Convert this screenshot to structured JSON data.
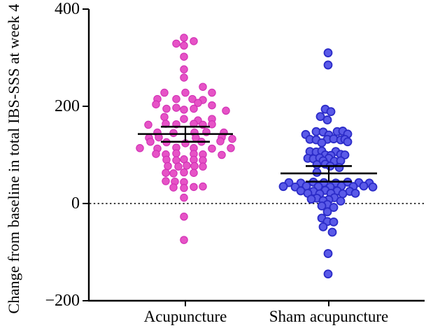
{
  "figure": {
    "background": "#ffffff",
    "y_axis_title": "Change from baseline in total IBS-SSS at week 4",
    "y_tick_labels": [
      "400",
      "200",
      "0",
      "−200"
    ],
    "x_category_labels": [
      "Acupuncture",
      "Sham acupuncture"
    ]
  },
  "chart_data": {
    "type": "scatter",
    "subtype": "beeswarm dot plot with mean and SEM error bars",
    "title": "",
    "xlabel": "",
    "ylabel": "Change from baseline in total IBS-SSS at week 4",
    "ylim": [
      -200,
      400
    ],
    "yticks": [
      400,
      200,
      0,
      -200
    ],
    "zero_reference_line": 0,
    "grid": false,
    "legend": false,
    "categories": [
      "Acupuncture",
      "Sham acupuncture"
    ],
    "series": [
      {
        "name": "Acupuncture",
        "color": "#E653C6",
        "edge_color": "#D12FB4",
        "mean": 143,
        "error_upper": 158,
        "error_lower": 127,
        "points": [
          [
            -2,
            341
          ],
          [
            12,
            334
          ],
          [
            -13,
            329
          ],
          [
            -2,
            325
          ],
          [
            -2,
            302
          ],
          [
            -2,
            276
          ],
          [
            -2,
            259
          ],
          [
            25,
            240
          ],
          [
            -30,
            228
          ],
          [
            0,
            228
          ],
          [
            38,
            228
          ],
          [
            -40,
            215
          ],
          [
            -13,
            215
          ],
          [
            10,
            215
          ],
          [
            25,
            213
          ],
          [
            -42,
            204
          ],
          [
            18,
            207
          ],
          [
            38,
            202
          ],
          [
            -27,
            195
          ],
          [
            -13,
            197
          ],
          [
            -2,
            193
          ],
          [
            12,
            195
          ],
          [
            58,
            191
          ],
          [
            -30,
            178
          ],
          [
            -2,
            174
          ],
          [
            18,
            171
          ],
          [
            38,
            174
          ],
          [
            -53,
            162
          ],
          [
            -28,
            164
          ],
          [
            -13,
            163
          ],
          [
            12,
            164
          ],
          [
            25,
            162
          ],
          [
            38,
            163
          ],
          [
            -40,
            146
          ],
          [
            -17,
            145
          ],
          [
            13,
            146
          ],
          [
            30,
            147
          ],
          [
            55,
            146
          ],
          [
            -52,
            135
          ],
          [
            -38,
            136
          ],
          [
            15,
            135
          ],
          [
            52,
            136
          ],
          [
            67,
            133
          ],
          [
            -50,
            127
          ],
          [
            -27,
            126
          ],
          [
            0,
            124
          ],
          [
            23,
            127
          ],
          [
            50,
            128
          ],
          [
            -65,
            114
          ],
          [
            -40,
            113
          ],
          [
            -13,
            115
          ],
          [
            12,
            114
          ],
          [
            38,
            113
          ],
          [
            65,
            114
          ],
          [
            -42,
            102
          ],
          [
            -28,
            101
          ],
          [
            -13,
            103
          ],
          [
            12,
            102
          ],
          [
            25,
            101
          ],
          [
            52,
            100
          ],
          [
            -27,
            90
          ],
          [
            -13,
            89
          ],
          [
            -2,
            91
          ],
          [
            12,
            90
          ],
          [
            25,
            89
          ],
          [
            -25,
            77
          ],
          [
            -10,
            76
          ],
          [
            2,
            78
          ],
          [
            13,
            77
          ],
          [
            25,
            76
          ],
          [
            -28,
            63
          ],
          [
            -17,
            62
          ],
          [
            -2,
            64
          ],
          [
            12,
            63
          ],
          [
            -28,
            46
          ],
          [
            -15,
            45
          ],
          [
            -2,
            44
          ],
          [
            -17,
            33
          ],
          [
            -2,
            32
          ],
          [
            12,
            34
          ],
          [
            25,
            35
          ],
          [
            -2,
            12
          ],
          [
            -2,
            -27
          ],
          [
            -2,
            -75
          ]
        ]
      },
      {
        "name": "Sham acupuncture",
        "color": "#5A5AE8",
        "edge_color": "#2B2BC8",
        "mean": 62,
        "error_upper": 77,
        "error_lower": 45,
        "points": [
          [
            -1,
            310
          ],
          [
            -1,
            285
          ],
          [
            -5,
            194
          ],
          [
            3,
            189
          ],
          [
            -12,
            179
          ],
          [
            -2,
            172
          ],
          [
            -18,
            148
          ],
          [
            -8,
            147
          ],
          [
            12,
            148
          ],
          [
            20,
            149
          ],
          [
            -33,
            142
          ],
          [
            0,
            141
          ],
          [
            27,
            143
          ],
          [
            -27,
            132
          ],
          [
            -18,
            131
          ],
          [
            -2,
            132
          ],
          [
            7,
            133
          ],
          [
            17,
            131
          ],
          [
            23,
            132
          ],
          [
            -10,
            125
          ],
          [
            27,
            127
          ],
          [
            -27,
            107
          ],
          [
            -18,
            106
          ],
          [
            -10,
            108
          ],
          [
            10,
            107
          ],
          [
            -5,
            100
          ],
          [
            3,
            99
          ],
          [
            17,
            101
          ],
          [
            23,
            100
          ],
          [
            -30,
            93
          ],
          [
            -22,
            92
          ],
          [
            -13,
            94
          ],
          [
            0,
            93
          ],
          [
            -8,
            88
          ],
          [
            8,
            87
          ],
          [
            17,
            88
          ],
          [
            -17,
            80
          ],
          [
            -5,
            81
          ],
          [
            2,
            77
          ],
          [
            15,
            74
          ],
          [
            -17,
            64
          ],
          [
            -57,
            43
          ],
          [
            -40,
            42
          ],
          [
            -22,
            44
          ],
          [
            -7,
            43
          ],
          [
            10,
            42
          ],
          [
            27,
            44
          ],
          [
            43,
            43
          ],
          [
            58,
            42
          ],
          [
            -65,
            35
          ],
          [
            -48,
            34
          ],
          [
            -32,
            36
          ],
          [
            -15,
            35
          ],
          [
            2,
            34
          ],
          [
            18,
            36
          ],
          [
            35,
            35
          ],
          [
            50,
            36
          ],
          [
            63,
            34
          ],
          [
            -40,
            26
          ],
          [
            -22,
            25
          ],
          [
            -5,
            27
          ],
          [
            12,
            26
          ],
          [
            30,
            25
          ],
          [
            -30,
            21
          ],
          [
            -13,
            20
          ],
          [
            3,
            21
          ],
          [
            20,
            20
          ],
          [
            38,
            21
          ],
          [
            -17,
            11
          ],
          [
            8,
            12
          ],
          [
            -25,
            9
          ],
          [
            0,
            8
          ],
          [
            -8,
            6
          ],
          [
            17,
            5
          ],
          [
            -2,
            -2
          ],
          [
            -10,
            -5
          ],
          [
            7,
            -8
          ],
          [
            -2,
            -17
          ],
          [
            -10,
            -30
          ],
          [
            -2,
            -37
          ],
          [
            7,
            -38
          ],
          [
            -8,
            -48
          ],
          [
            5,
            -59
          ],
          [
            -1,
            -103
          ],
          [
            -1,
            -145
          ]
        ]
      }
    ]
  }
}
